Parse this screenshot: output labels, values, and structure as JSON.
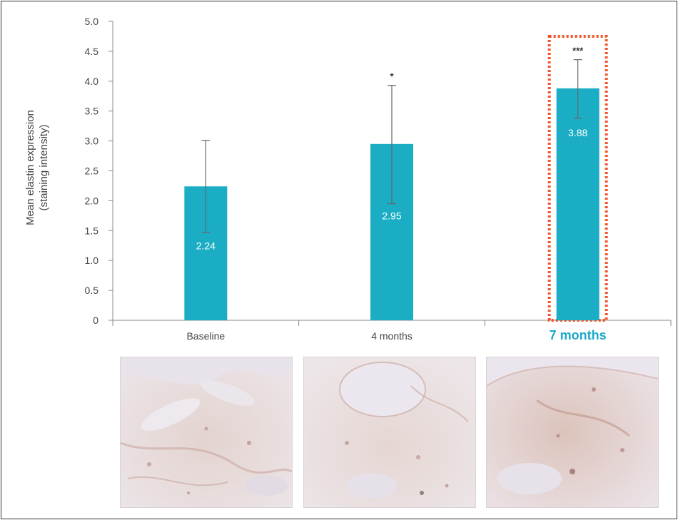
{
  "chart_data": {
    "type": "bar",
    "title": "",
    "xlabel": "",
    "ylabel": [
      "Mean elastin expression",
      "(staining intensity)"
    ],
    "ylim": [
      0,
      5.0
    ],
    "yticks": [
      "0",
      "0.5",
      "1.0",
      "1.5",
      "2.0",
      "2.5",
      "3.0",
      "3.5",
      "4.0",
      "4.5",
      "5.0"
    ],
    "categories": [
      "Baseline",
      "4 months",
      "7 months"
    ],
    "values": [
      2.24,
      2.95,
      3.88
    ],
    "value_labels": [
      "2.24",
      "2.95",
      "3.88"
    ],
    "error_low": [
      1.47,
      1.95,
      3.38
    ],
    "error_high": [
      3.01,
      3.93,
      4.36
    ],
    "significance": [
      "",
      "*",
      "***"
    ],
    "highlighted_category": "7 months",
    "grid": false
  },
  "colors": {
    "bar": "#1badc4",
    "highlight_text": "#1ba9c8",
    "highlight_box": "#f0562a",
    "axis": "#888888",
    "text": "#444444"
  },
  "images": [
    {
      "name": "micrograph-baseline",
      "caption": ""
    },
    {
      "name": "micrograph-4-months",
      "caption": ""
    },
    {
      "name": "micrograph-7-months",
      "caption": ""
    }
  ]
}
